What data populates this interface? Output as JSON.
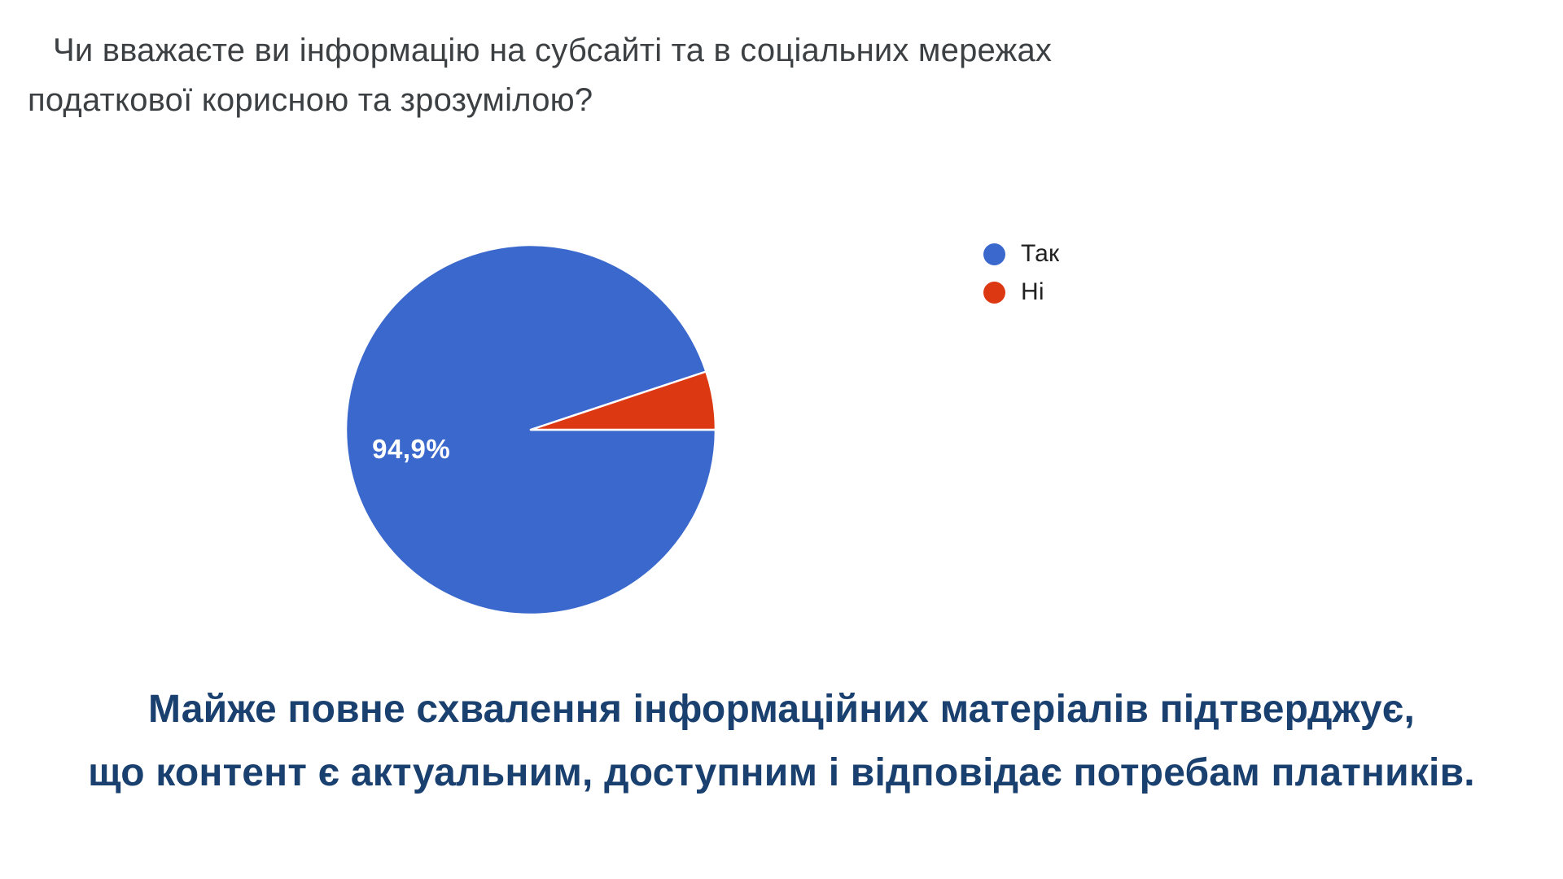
{
  "title": {
    "line1": "Чи вважаєте ви інформацію на субсайті та в соціальних мережах",
    "line2": "податкової корисною та зрозумілою?"
  },
  "chart_data": {
    "type": "pie",
    "title": "Чи вважаєте ви інформацію на субсайті та в соціальних мережах податкової корисною та зрозумілою?",
    "labels": [
      "Так",
      "Ні"
    ],
    "slice_names": [
      "yes",
      "no"
    ],
    "values": [
      94.9,
      5.1
    ],
    "unit": "%",
    "colors": [
      "#3a68cc",
      "#dc3912"
    ],
    "slice_label": "94,9%",
    "slice_label_color": "#ffffff",
    "legend_position": "right",
    "start_angle_deg": 0,
    "direction": "clockwise",
    "separator_color": "#ffffff"
  },
  "caption": {
    "line1": "Майже повне схвалення інформаційних матеріалів підтверджує,",
    "line2": "що контент є актуальним, доступним і відповідає потребам платників.",
    "color": "#19406f"
  }
}
